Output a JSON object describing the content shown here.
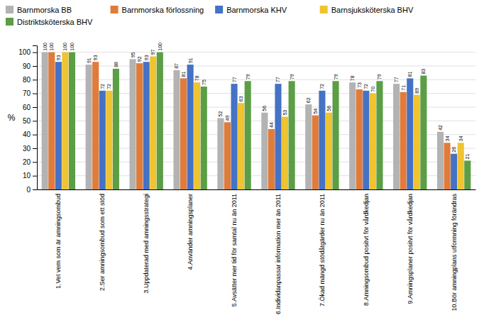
{
  "chart_data": {
    "type": "bar",
    "categories": [
      "1.Vet vem som är amningsombud",
      "2.Ser amningsombud som ett stöd",
      "3.Uppdaterad med amningsstrategi",
      "4.Använder amningsplaner",
      "5.Avsätter mer tid för samtal nu än 2011",
      "6.Individanpassar information mer än 2011",
      "7.Ökad mängd stödåtgärder nu än 2011",
      "8.Amningsombud positvt för vårdkedjan",
      "9.Amningsplaner positvt för vårdkedjan",
      "10.Bör amningplans utformning förändras"
    ],
    "series": [
      {
        "name": "Barnmorska BB",
        "color": "#b3b3b3",
        "values": [
          100,
          91,
          95,
          87,
          52,
          56,
          62,
          78,
          77,
          42
        ]
      },
      {
        "name": "Barnmorska förlossning",
        "color": "#e07b39",
        "values": [
          100,
          93,
          92,
          81,
          49,
          44,
          54,
          73,
          71,
          34
        ]
      },
      {
        "name": "Barnmorska KHV",
        "color": "#4472c4",
        "values": [
          93,
          72,
          93,
          91,
          77,
          77,
          72,
          72,
          81,
          26
        ]
      },
      {
        "name": "Barnsjuksköterska BHV",
        "color": "#f0c330",
        "values": [
          100,
          72,
          97,
          78,
          63,
          53,
          56,
          70,
          69,
          34
        ]
      },
      {
        "name": "Distriktsköterska BHV",
        "color": "#5b9e45",
        "values": [
          100,
          88,
          100,
          75,
          79,
          79,
          79,
          79,
          83,
          21
        ]
      }
    ],
    "ylabel": "%",
    "ylim": [
      0,
      105
    ],
    "yticks": [
      0,
      10,
      20,
      30,
      40,
      50,
      60,
      70,
      80,
      90,
      100
    ],
    "grid": true,
    "data_labels": true,
    "legend": "top"
  }
}
